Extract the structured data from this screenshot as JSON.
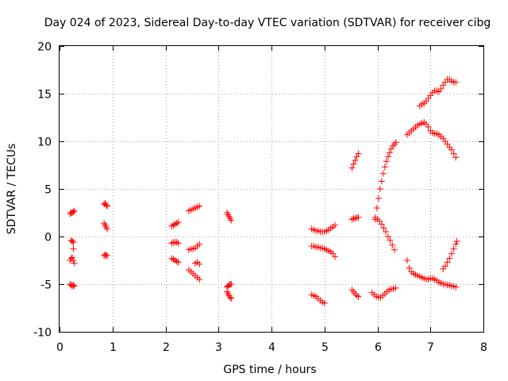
{
  "chart_data": {
    "type": "scatter",
    "title": "Day 024 of 2023, Sidereal Day-to-day VTEC variation (SDTVAR) for receiver cibg",
    "xlabel": "GPS time / hours",
    "ylabel": "SDTVAR / TECUs",
    "xlim": [
      0,
      8
    ],
    "ylim": [
      -10,
      20
    ],
    "xticks": [
      0,
      1,
      2,
      3,
      4,
      5,
      6,
      7,
      8
    ],
    "yticks": [
      -10,
      -5,
      0,
      5,
      10,
      15,
      20
    ],
    "grid": true,
    "marker": "plus",
    "color": "#ff0000",
    "segments": [
      {
        "x": [
          0.2,
          0.22,
          0.24,
          0.26,
          0.28
        ],
        "y": [
          2.4,
          2.5,
          2.5,
          2.6,
          2.7
        ]
      },
      {
        "x": [
          0.22,
          0.24,
          0.26
        ],
        "y": [
          -0.4,
          -0.5,
          -0.6
        ]
      },
      {
        "x": [
          0.26
        ],
        "y": [
          -1.3
        ]
      },
      {
        "x": [
          0.2,
          0.22,
          0.24,
          0.26,
          0.28
        ],
        "y": [
          -2.5,
          -2.3,
          -2.2,
          -2.5,
          -2.8
        ]
      },
      {
        "x": [
          0.2,
          0.22,
          0.24,
          0.26,
          0.28
        ],
        "y": [
          -5.0,
          -5.1,
          -5.2,
          -5.1,
          -5.2
        ]
      },
      {
        "x": [
          0.84,
          0.86,
          0.88,
          0.9
        ],
        "y": [
          3.4,
          3.5,
          3.3,
          3.2
        ]
      },
      {
        "x": [
          0.84,
          0.86,
          0.88,
          0.9
        ],
        "y": [
          1.4,
          1.2,
          1.0,
          0.8
        ]
      },
      {
        "x": [
          0.84,
          0.86,
          0.88,
          0.9
        ],
        "y": [
          -2.0,
          -1.9,
          -2.0,
          -2.0
        ]
      },
      {
        "x": [
          2.12,
          2.15,
          2.18,
          2.21,
          2.24
        ],
        "y": [
          1.1,
          1.2,
          1.3,
          1.4,
          1.5
        ]
      },
      {
        "x": [
          2.12,
          2.15,
          2.18,
          2.21,
          2.24
        ],
        "y": [
          -0.7,
          -0.6,
          -0.6,
          -0.6,
          -0.7
        ]
      },
      {
        "x": [
          2.12,
          2.15,
          2.18,
          2.21,
          2.24
        ],
        "y": [
          -2.3,
          -2.4,
          -2.5,
          -2.6,
          -2.7
        ]
      },
      {
        "x": [
          2.44,
          2.48,
          2.52,
          2.56,
          2.6,
          2.64
        ],
        "y": [
          2.7,
          2.8,
          2.9,
          3.0,
          3.1,
          3.2
        ]
      },
      {
        "x": [
          2.44,
          2.48,
          2.52,
          2.56,
          2.6,
          2.64
        ],
        "y": [
          -1.4,
          -1.3,
          -1.3,
          -1.2,
          -1.0,
          -0.8
        ]
      },
      {
        "x": [
          2.44,
          2.48,
          2.52,
          2.56,
          2.6,
          2.64
        ],
        "y": [
          -3.5,
          -3.7,
          -3.9,
          -4.1,
          -4.3,
          -4.5
        ]
      },
      {
        "x": [
          2.56,
          2.6,
          2.64
        ],
        "y": [
          -2.8,
          -2.7,
          -2.9
        ]
      },
      {
        "x": [
          3.16,
          3.18,
          3.2,
          3.22,
          3.24
        ],
        "y": [
          2.5,
          2.3,
          2.1,
          1.9,
          1.7
        ]
      },
      {
        "x": [
          3.16,
          3.18,
          3.2,
          3.22,
          3.24
        ],
        "y": [
          -5.3,
          -5.2,
          -5.1,
          -5.0,
          -5.0
        ]
      },
      {
        "x": [
          3.16,
          3.18,
          3.2,
          3.22,
          3.24
        ],
        "y": [
          -5.8,
          -6.0,
          -6.2,
          -6.4,
          -6.5
        ]
      },
      {
        "x": [
          4.76,
          4.8,
          4.84,
          4.88,
          4.92,
          4.96,
          5.0,
          5.04,
          5.08,
          5.12,
          5.16,
          5.2
        ],
        "y": [
          0.8,
          0.7,
          0.6,
          0.6,
          0.5,
          0.5,
          0.5,
          0.6,
          0.7,
          0.9,
          1.0,
          1.2
        ]
      },
      {
        "x": [
          4.76,
          4.8,
          4.84,
          4.88,
          4.92,
          4.96,
          5.0,
          5.04,
          5.08,
          5.12,
          5.16,
          5.2
        ],
        "y": [
          -1.0,
          -1.0,
          -1.1,
          -1.1,
          -1.2,
          -1.2,
          -1.3,
          -1.4,
          -1.5,
          -1.6,
          -1.8,
          -2.1
        ]
      },
      {
        "x": [
          4.76,
          4.8,
          4.84,
          4.88,
          4.92,
          4.96,
          5.0
        ],
        "y": [
          -6.1,
          -6.2,
          -6.3,
          -6.5,
          -6.7,
          -6.9,
          -7.0
        ]
      },
      {
        "x": [
          5.52,
          5.55,
          5.58,
          5.61,
          5.64
        ],
        "y": [
          7.2,
          7.6,
          8.0,
          8.4,
          8.7
        ]
      },
      {
        "x": [
          5.52,
          5.55,
          5.58,
          5.61,
          5.64
        ],
        "y": [
          1.8,
          1.9,
          1.9,
          2.0,
          2.0
        ]
      },
      {
        "x": [
          5.52,
          5.55,
          5.58,
          5.61,
          5.64
        ],
        "y": [
          -5.6,
          -5.8,
          -6.0,
          -6.2,
          -6.3
        ]
      },
      {
        "x": [
          5.9,
          5.94,
          5.98,
          6.02,
          6.06,
          6.1,
          6.14,
          6.18,
          6.22,
          6.26,
          6.3,
          6.34
        ],
        "y": [
          -5.9,
          -6.1,
          -6.3,
          -6.4,
          -6.4,
          -6.2,
          -6.0,
          -5.8,
          -5.6,
          -5.5,
          -5.5,
          -5.4
        ]
      },
      {
        "x": [
          5.96,
          6.0,
          6.04,
          6.08,
          6.12,
          6.16,
          6.2,
          6.24,
          6.28,
          6.32
        ],
        "y": [
          1.8,
          1.8,
          1.6,
          1.3,
          0.9,
          0.5,
          0.0,
          -0.4,
          -0.9,
          -1.4
        ]
      },
      {
        "x": [
          5.96,
          5.99,
          6.02,
          6.05,
          6.08,
          6.11,
          6.14,
          6.17,
          6.2,
          6.23,
          6.26,
          6.29,
          6.32,
          6.35
        ],
        "y": [
          2.0,
          3.0,
          4.0,
          5.0,
          5.8,
          6.6,
          7.3,
          7.9,
          8.4,
          8.8,
          9.2,
          9.5,
          9.7,
          9.9
        ]
      },
      {
        "x": [
          6.56,
          6.6,
          6.64,
          6.68,
          6.72,
          6.76,
          6.8,
          6.84,
          6.88,
          6.92,
          6.96,
          7.0,
          7.04,
          7.08,
          7.12,
          7.16,
          7.2,
          7.24,
          7.28,
          7.32,
          7.36,
          7.4,
          7.44,
          7.48
        ],
        "y": [
          10.7,
          10.9,
          11.1,
          11.3,
          11.5,
          11.7,
          11.8,
          11.9,
          12.0,
          11.8,
          11.5,
          11.1,
          10.9,
          10.8,
          10.8,
          10.7,
          10.5,
          10.3,
          10.0,
          9.7,
          9.4,
          9.1,
          8.7,
          8.3
        ]
      },
      {
        "x": [
          6.8,
          6.84,
          6.88,
          6.92,
          6.96,
          7.0,
          7.04,
          7.08,
          7.12,
          7.16,
          7.2,
          7.24,
          7.28,
          7.32,
          7.36,
          7.4,
          7.44,
          7.48
        ],
        "y": [
          13.7,
          13.9,
          14.0,
          14.2,
          14.5,
          14.8,
          15.1,
          15.3,
          15.3,
          15.2,
          15.5,
          15.9,
          16.2,
          16.5,
          16.5,
          16.3,
          16.2,
          16.2
        ]
      },
      {
        "x": [
          6.56,
          6.6,
          6.64,
          6.68,
          6.72,
          6.76,
          6.8,
          6.84,
          6.88,
          6.92,
          6.96,
          7.0,
          7.04,
          7.08,
          7.12,
          7.16,
          7.2,
          7.24,
          7.28,
          7.32,
          7.36,
          7.4,
          7.44,
          7.48
        ],
        "y": [
          -2.5,
          -3.3,
          -3.7,
          -3.9,
          -4.0,
          -4.1,
          -4.2,
          -4.3,
          -4.4,
          -4.5,
          -4.5,
          -4.4,
          -4.4,
          -4.5,
          -4.6,
          -4.8,
          -4.9,
          -5.0,
          -5.0,
          -5.1,
          -5.1,
          -5.2,
          -5.2,
          -5.3
        ]
      },
      {
        "x": [
          7.24,
          7.28,
          7.32,
          7.36,
          7.4,
          7.44,
          7.48,
          7.5
        ],
        "y": [
          -3.4,
          -3.1,
          -2.7,
          -2.3,
          -1.8,
          -1.3,
          -0.8,
          -0.5
        ]
      }
    ]
  }
}
